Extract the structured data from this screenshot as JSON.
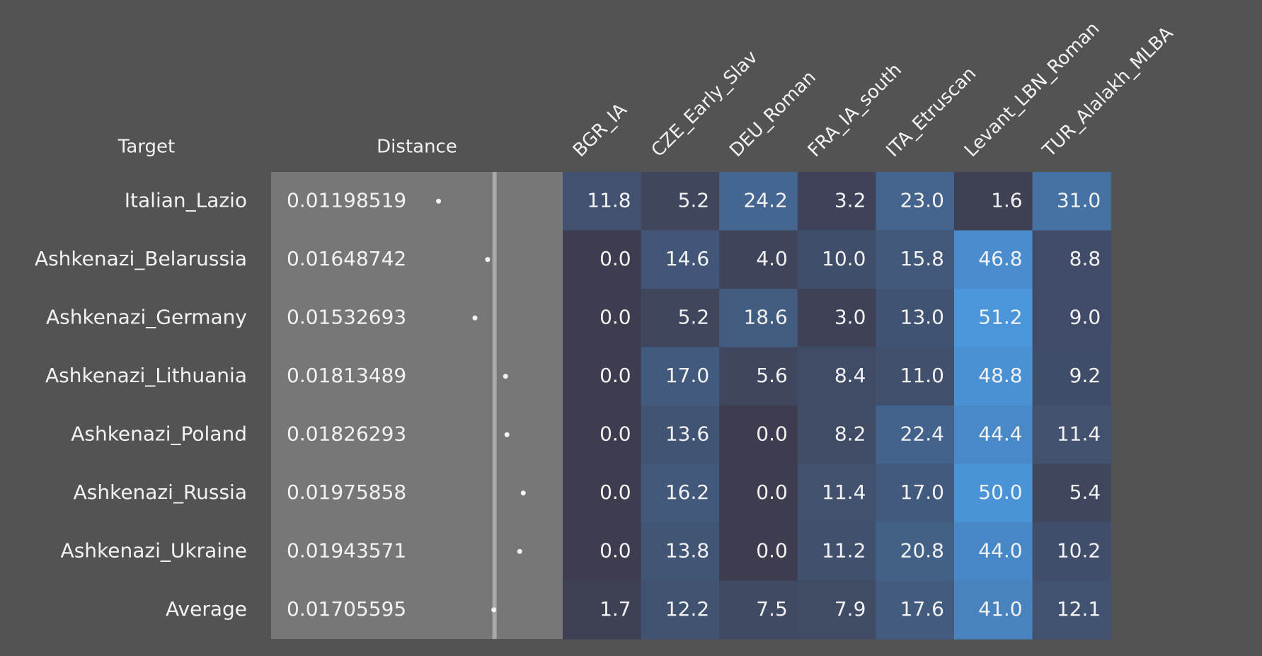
{
  "chart_data": {
    "type": "heatmap",
    "row_header": "Target",
    "distance_header": "Distance",
    "columns": [
      "BGR_IA",
      "CZE_Early_Slav",
      "DEU_Roman",
      "FRA_IA_south",
      "ITA_Etruscan",
      "Levant_LBN_Roman",
      "TUR_Alalakh_MLBA"
    ],
    "rows": [
      {
        "target": "Italian_Lazio",
        "distance": "0.01198519",
        "values": [
          "11.8",
          "5.2",
          "24.2",
          "3.2",
          "23.0",
          "1.6",
          "31.0"
        ]
      },
      {
        "target": "Ashkenazi_Belarussia",
        "distance": "0.01648742",
        "values": [
          "0.0",
          "14.6",
          "4.0",
          "10.0",
          "15.8",
          "46.8",
          "8.8"
        ]
      },
      {
        "target": "Ashkenazi_Germany",
        "distance": "0.01532693",
        "values": [
          "0.0",
          "5.2",
          "18.6",
          "3.0",
          "13.0",
          "51.2",
          "9.0"
        ]
      },
      {
        "target": "Ashkenazi_Lithuania",
        "distance": "0.01813489",
        "values": [
          "0.0",
          "17.0",
          "5.6",
          "8.4",
          "11.0",
          "48.8",
          "9.2"
        ]
      },
      {
        "target": "Ashkenazi_Poland",
        "distance": "0.01826293",
        "values": [
          "0.0",
          "13.6",
          "0.0",
          "8.2",
          "22.4",
          "44.4",
          "11.4"
        ]
      },
      {
        "target": "Ashkenazi_Russia",
        "distance": "0.01975858",
        "values": [
          "0.0",
          "16.2",
          "0.0",
          "11.4",
          "17.0",
          "50.0",
          "5.4"
        ]
      },
      {
        "target": "Ashkenazi_Ukraine",
        "distance": "0.01943571",
        "values": [
          "0.0",
          "13.8",
          "0.0",
          "11.2",
          "20.8",
          "44.0",
          "10.2"
        ]
      },
      {
        "target": "Average",
        "distance": "0.01705595",
        "values": [
          "1.7",
          "12.2",
          "7.5",
          "7.9",
          "17.6",
          "41.0",
          "12.1"
        ]
      }
    ],
    "distance_scale": [
      0,
      0.025
    ],
    "reference_distance": 0.01705595,
    "color_scale": {
      "low": "#3e3d4f",
      "high": "#4b96dc",
      "max_value": 52
    },
    "colors": {
      "background": "#535353",
      "distance_panel": "#777777",
      "text": "#f2f2f2",
      "reference_line": "#a8a8a8"
    }
  }
}
